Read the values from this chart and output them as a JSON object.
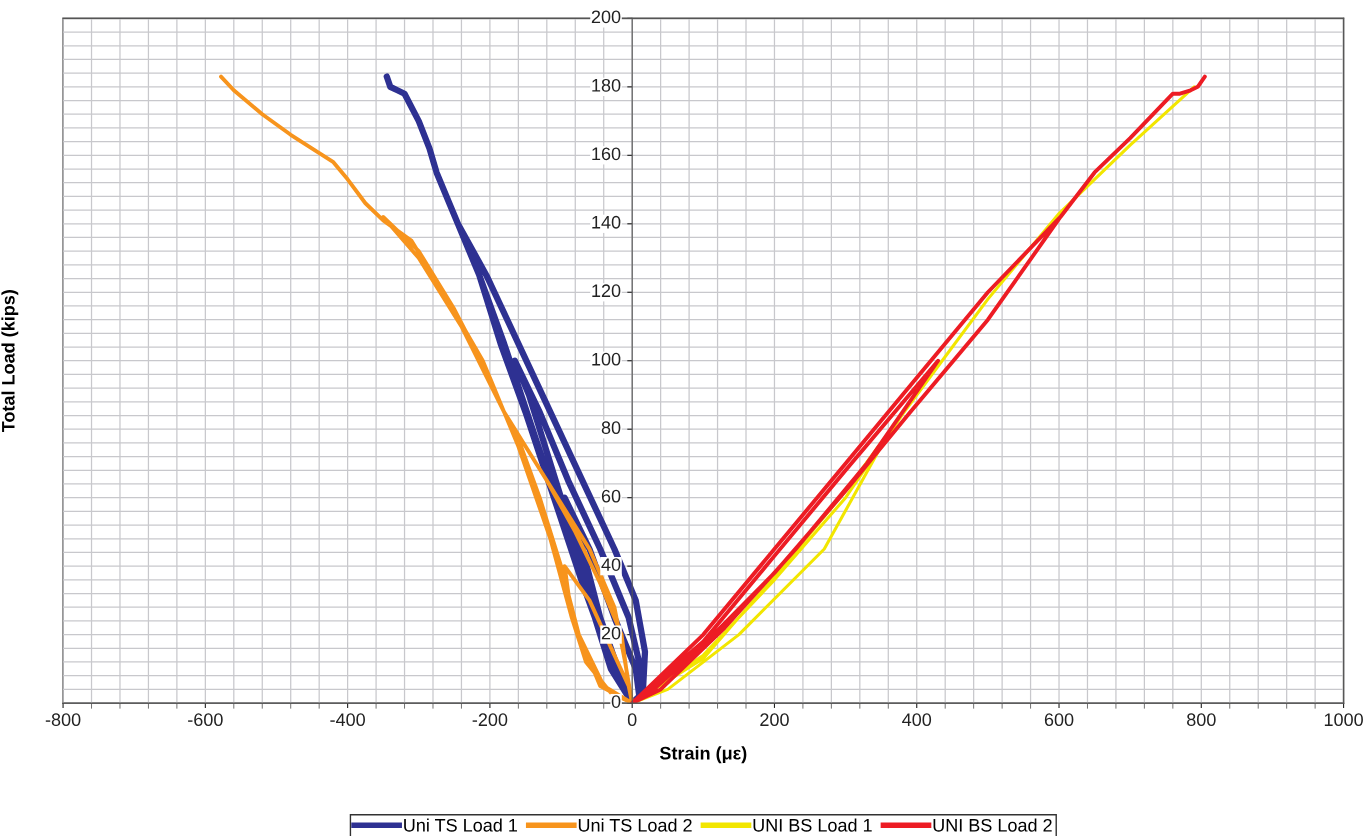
{
  "chart_data": {
    "type": "line",
    "xlabel": "Strain (με)",
    "ylabel": "Total Load (kips)",
    "xlim": [
      -800,
      1000
    ],
    "xticks": [
      -800,
      -600,
      -400,
      -200,
      0,
      200,
      400,
      600,
      800,
      1000
    ],
    "ylim": [
      0,
      200
    ],
    "yticks": [
      0,
      20,
      40,
      60,
      80,
      100,
      120,
      140,
      160,
      180,
      200
    ],
    "grid": true,
    "legend": "bottom",
    "marker": "none",
    "line_style": "solid",
    "series": [
      {
        "name": "Uni TS Load 1",
        "color": "#2e3192",
        "x": [
          0,
          -20,
          -45,
          -70,
          -95,
          -60,
          -25,
          5,
          10,
          0,
          -25,
          -55,
          -85,
          -115,
          -145,
          -165,
          -130,
          -90,
          -45,
          -5,
          12,
          10,
          0,
          -30,
          -60,
          -100,
          -140,
          -180,
          -215,
          -245,
          -205,
          -160,
          -115,
          -70,
          -25,
          5,
          18,
          15,
          0,
          -35,
          -70,
          -110,
          -150,
          -185,
          -215,
          -245,
          -255,
          -275,
          -285,
          -300,
          -320,
          -330,
          -340,
          -345
        ],
        "values": [
          0,
          10,
          25,
          45,
          60,
          45,
          25,
          10,
          2,
          0,
          10,
          30,
          50,
          70,
          90,
          100,
          85,
          65,
          45,
          25,
          10,
          2,
          0,
          10,
          30,
          55,
          80,
          105,
          125,
          140,
          125,
          105,
          85,
          65,
          45,
          30,
          15,
          3,
          0,
          15,
          35,
          60,
          85,
          105,
          125,
          140,
          145,
          155,
          162,
          170,
          178,
          179,
          180,
          183
        ]
      },
      {
        "name": "Uni TS Load 2",
        "color": "#f7941d",
        "x": [
          0,
          -30,
          -65,
          -85,
          -95,
          -60,
          -25,
          -5,
          0,
          -40,
          -75,
          -100,
          -130,
          -165,
          -120,
          -80,
          -45,
          -15,
          -5,
          0,
          -40,
          -80,
          -110,
          -150,
          -200,
          -250,
          -300,
          -350,
          -300,
          -240,
          -180,
          -120,
          -60,
          -25,
          -10,
          0,
          -45,
          -85,
          -115,
          -160,
          -210,
          -260,
          -310,
          -350,
          -375,
          -400,
          -420,
          -480,
          -520,
          -560,
          -578
        ],
        "values": [
          0,
          3,
          12,
          25,
          40,
          30,
          14,
          5,
          0,
          5,
          20,
          40,
          60,
          80,
          65,
          50,
          35,
          20,
          5,
          0,
          5,
          22,
          45,
          70,
          95,
          115,
          132,
          142,
          130,
          110,
          85,
          65,
          45,
          28,
          12,
          0,
          5,
          25,
          48,
          75,
          100,
          118,
          135,
          141,
          146,
          153,
          158,
          166,
          172,
          179,
          183
        ]
      },
      {
        "name": "UNI BS Load 1",
        "color": "#f2e600",
        "x": [
          0,
          100,
          200,
          300,
          430,
          350,
          270,
          150,
          50,
          0,
          100,
          200,
          300,
          400,
          500,
          600,
          700,
          790
        ],
        "values": [
          0,
          14,
          36,
          60,
          100,
          75,
          45,
          20,
          4,
          0,
          13,
          37,
          62,
          90,
          118,
          143,
          163,
          180
        ]
      },
      {
        "name": "UNI BS Load 2",
        "color": "#ed1c24",
        "x": [
          0,
          100,
          200,
          300,
          430,
          330,
          230,
          130,
          40,
          0,
          100,
          200,
          300,
          400,
          500,
          602,
          500,
          391,
          300,
          200,
          100,
          25,
          0,
          100,
          200,
          300,
          400,
          500,
          602,
          650,
          700,
          760,
          770,
          785,
          795,
          805
        ],
        "values": [
          0,
          18,
          43,
          68,
          100,
          70,
          45,
          22,
          4,
          0,
          20,
          45,
          70,
          95,
          120,
          142,
          112,
          85,
          62,
          38,
          17,
          3,
          0,
          20,
          45,
          70,
          95,
          120,
          142,
          155,
          165,
          178,
          178,
          179,
          180,
          183
        ]
      }
    ]
  }
}
